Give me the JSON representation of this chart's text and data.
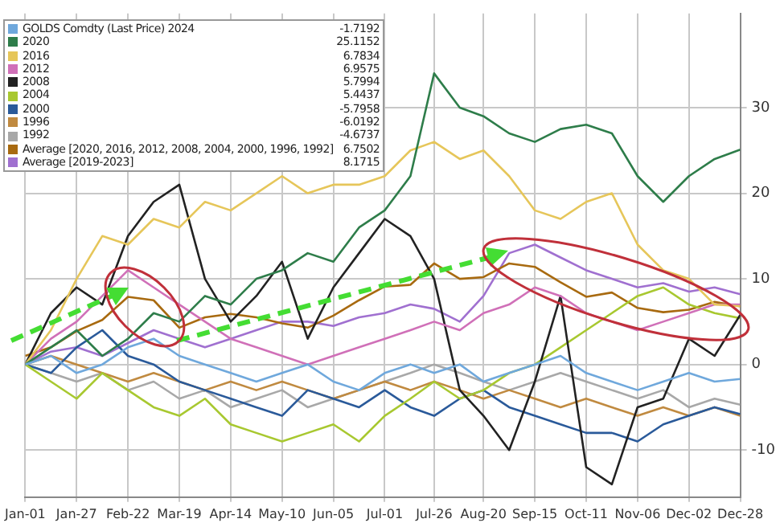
{
  "chart_data": {
    "type": "line",
    "x": [
      "--01-01",
      "--01-14",
      "--01-27",
      "--02-09",
      "--02-22",
      "--03-06",
      "--03-19",
      "--04-01",
      "--04-14",
      "--04-27",
      "--05-10",
      "--05-23",
      "--06-05",
      "--06-18",
      "--07-01",
      "--07-14",
      "--07-26",
      "--08-08",
      "--08-20",
      "--09-02",
      "--09-15",
      "--09-28",
      "--10-11",
      "--10-24",
      "--11-06",
      "--11-19",
      "--12-02",
      "--12-15",
      "--12-28"
    ],
    "series": [
      {
        "name": "GOLDS Comdty (Last Price) 2024",
        "color": "#6fa8dc",
        "values": [
          0,
          1,
          -1,
          0,
          2,
          3,
          1,
          0,
          -1,
          -2,
          -1,
          0,
          -2,
          -3,
          -1,
          0,
          -1,
          0,
          -2,
          -1,
          0,
          1,
          -1,
          -2,
          -3,
          -2,
          -1,
          -2,
          -1.7
        ]
      },
      {
        "name": "2020",
        "color": "#2e7d4a",
        "values": [
          0,
          2,
          4,
          1,
          3,
          6,
          5,
          8,
          7,
          10,
          11,
          13,
          12,
          16,
          18,
          22,
          34,
          30,
          29,
          27,
          26,
          27.5,
          28,
          27,
          22,
          19,
          22,
          24,
          25.1
        ]
      },
      {
        "name": "2016",
        "color": "#e6c65a",
        "values": [
          0,
          4,
          10,
          15,
          14,
          17,
          16,
          19,
          18,
          20,
          22,
          20,
          21,
          21,
          22,
          25,
          26,
          24,
          25,
          22,
          18,
          17,
          19,
          20,
          14,
          11,
          10,
          7,
          6.8
        ]
      },
      {
        "name": "2012",
        "color": "#d070b8",
        "values": [
          0,
          3,
          5,
          8,
          11,
          9,
          7,
          5,
          3,
          2,
          1,
          0,
          1,
          2,
          3,
          4,
          5,
          4,
          6,
          7,
          9,
          8,
          6,
          5,
          4,
          5,
          6,
          7,
          7
        ]
      },
      {
        "name": "2008",
        "color": "#222222",
        "values": [
          0,
          6,
          9,
          7,
          15,
          19,
          21,
          10,
          5,
          8,
          12,
          3,
          9,
          13,
          17,
          15,
          10,
          -3,
          -6,
          -10,
          -2,
          8,
          -12,
          -14,
          -5,
          -4,
          3,
          1,
          5.8
        ]
      },
      {
        "name": "2004",
        "color": "#a8c830",
        "values": [
          0,
          -2,
          -4,
          -1,
          -3,
          -5,
          -6,
          -4,
          -7,
          -8,
          -9,
          -8,
          -7,
          -9,
          -6,
          -4,
          -2,
          -4,
          -3,
          -1,
          0,
          2,
          4,
          6,
          8,
          9,
          7,
          6,
          5.4
        ]
      },
      {
        "name": "2000",
        "color": "#2a5a9a",
        "values": [
          0,
          -1,
          2,
          4,
          1,
          0,
          -2,
          -3,
          -4,
          -5,
          -6,
          -3,
          -4,
          -5,
          -3,
          -5,
          -6,
          -4,
          -3,
          -5,
          -6,
          -7,
          -8,
          -8,
          -9,
          -7,
          -6,
          -5,
          -5.8
        ]
      },
      {
        "name": "1996",
        "color": "#c08a40",
        "values": [
          0,
          1,
          0,
          -1,
          -2,
          -1,
          -2,
          -3,
          -2,
          -3,
          -2,
          -3,
          -4,
          -3,
          -2,
          -3,
          -2,
          -3,
          -4,
          -3,
          -4,
          -5,
          -4,
          -5,
          -6,
          -5,
          -6,
          -5,
          -6
        ]
      },
      {
        "name": "1992",
        "color": "#a8a8a8",
        "values": [
          0,
          -1,
          -2,
          -1,
          -3,
          -2,
          -4,
          -3,
          -5,
          -4,
          -3,
          -5,
          -4,
          -3,
          -2,
          -1,
          0,
          -1,
          -2,
          -3,
          -2,
          -1,
          -2,
          -3,
          -4,
          -3,
          -5,
          -4,
          -4.7
        ]
      },
      {
        "name": "Average  [2020, 2016, 2012, 2008, 2004, 2000, 1996, 1992]",
        "color": "#a86a10",
        "values": [
          1,
          2,
          3.9,
          5.2,
          7.9,
          7.5,
          4.3,
          5.5,
          5.9,
          5.5,
          4.8,
          4.3,
          5.7,
          7.5,
          9.1,
          9.3,
          11.8,
          10,
          10.2,
          11.8,
          11.4,
          9.6,
          7.9,
          8.4,
          6.6,
          6.1,
          6.4,
          7.3,
          6.8
        ]
      },
      {
        "name": "Average  [2019-2023]",
        "color": "#a070d0",
        "values": [
          0,
          1.5,
          2,
          1,
          2.5,
          4,
          3,
          2,
          3,
          4,
          5,
          5,
          4.5,
          5.5,
          6,
          7,
          6.5,
          5,
          8,
          13,
          14,
          12.5,
          11,
          10,
          9,
          9.5,
          8.5,
          9,
          8.2
        ]
      }
    ],
    "annotations": [
      "-1.7192",
      "25.1152",
      "6.7834",
      "6.9575",
      "5.7994",
      "5.4437",
      "-5.7958",
      "-6.0192",
      "-4.6737",
      "6.7502",
      "8.1715"
    ],
    "xlim": [
      "--01-01",
      "--12-28"
    ],
    "xticks": [
      {
        "value": "--01-01",
        "label": "Jan-01"
      },
      {
        "value": "--01-27",
        "label": "Jan-27"
      },
      {
        "value": "--02-22",
        "label": "Feb-22"
      },
      {
        "value": "--03-19",
        "label": "Mar-19"
      },
      {
        "value": "--04-14",
        "label": "Apr-14"
      },
      {
        "value": "--05-10",
        "label": "May-10"
      },
      {
        "value": "--06-05",
        "label": "Jun-05"
      },
      {
        "value": "--07-01",
        "label": "Jul-01"
      },
      {
        "value": "--07-26",
        "label": "Jul-26"
      },
      {
        "value": "--08-20",
        "label": "Aug-20"
      },
      {
        "value": "--09-15",
        "label": "Sep-15"
      },
      {
        "value": "--10-11",
        "label": "Oct-11"
      },
      {
        "value": "--11-06",
        "label": "Nov-06"
      },
      {
        "value": "--12-02",
        "label": "Dec-02"
      },
      {
        "value": "--12-28",
        "label": "Dec-28"
      }
    ],
    "ylim": [
      -15.5,
      41
    ],
    "yticks": [
      -10,
      0,
      10,
      20,
      30
    ],
    "grid": true,
    "legend": "top left",
    "marker": "none",
    "line_style": "solid"
  }
}
